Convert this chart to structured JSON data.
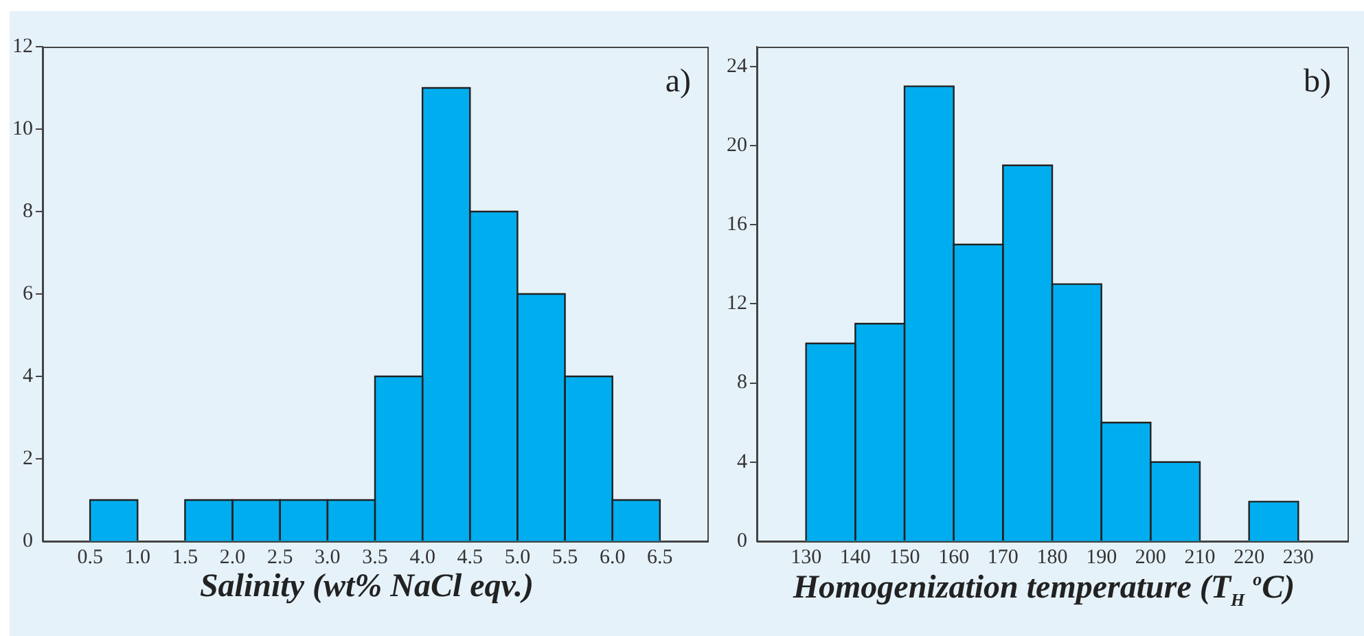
{
  "chart_data": [
    {
      "type": "histogram",
      "xlabel": "Salinity (wt% NaCl eqv.)",
      "annotations": [
        "a)"
      ],
      "bins": [
        0.5,
        1.0,
        1.5,
        2.0,
        2.5,
        3.0,
        3.5,
        4.0,
        4.5,
        5.0,
        5.5,
        6.0,
        6.5
      ],
      "values": [
        1,
        0,
        1,
        1,
        1,
        1,
        4,
        11,
        8,
        6,
        4,
        1
      ],
      "color": "#00aeef",
      "xlim": [
        0,
        7
      ],
      "xticks": [
        0.5,
        {
          "value": 1,
          "label": "1.0"
        },
        1.5,
        {
          "value": 2,
          "label": "2.0"
        },
        2.5,
        {
          "value": 3,
          "label": "3.0"
        },
        3.5,
        {
          "value": 4,
          "label": "4.0"
        },
        4.5,
        {
          "value": 5,
          "label": "5.0"
        },
        5.5,
        {
          "value": 6,
          "label": "6.0"
        },
        6.5
      ],
      "ylim": [
        0,
        12
      ],
      "yticks": [
        0,
        2,
        4,
        6,
        8,
        10,
        12
      ],
      "grid": false,
      "legend": false
    },
    {
      "type": "histogram",
      "xlabel": "Homogenization temperature (T$_{H}$ $^{o}$C)",
      "annotations": [
        "b)"
      ],
      "bins": [
        130,
        140,
        150,
        160,
        170,
        180,
        190,
        200,
        210,
        220,
        230
      ],
      "values": [
        10,
        11,
        23,
        15,
        19,
        13,
        6,
        4,
        0,
        2
      ],
      "color": "#00aeef",
      "xlim": [
        120,
        240
      ],
      "xticks": [
        130,
        140,
        150,
        160,
        170,
        180,
        190,
        200,
        210,
        220,
        230
      ],
      "ylim": [
        0,
        25
      ],
      "yticks": [
        0,
        4,
        8,
        12,
        16,
        20,
        24
      ],
      "grid": false,
      "legend": false
    }
  ]
}
